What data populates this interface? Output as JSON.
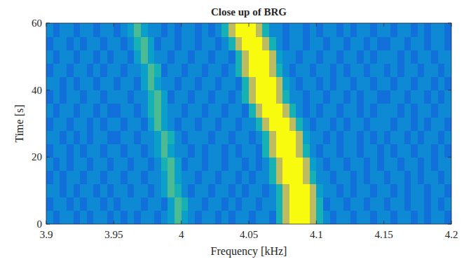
{
  "chart_data": {
    "type": "heatmap",
    "title": "Close up of BRG",
    "x_label": "Frequency [kHz]",
    "y_label": "Time [s]",
    "xlim": [
      3.9,
      4.2
    ],
    "xticks": [
      3.9,
      3.95,
      4,
      4.05,
      4.1,
      4.15,
      4.2
    ],
    "ylim": [
      0,
      60
    ],
    "yticks": [
      0,
      20,
      40,
      60
    ],
    "clim": [
      0,
      10
    ],
    "x": [
      3.9025,
      3.9075,
      3.9125,
      3.9175,
      3.9225,
      3.9275,
      3.9325,
      3.9375,
      3.9425,
      3.9475,
      3.9525,
      3.9575,
      3.9625,
      3.9675,
      3.9725,
      3.9775,
      3.9825,
      3.9875,
      3.9925,
      3.9975,
      4.0025,
      4.0075,
      4.0125,
      4.0175,
      4.0225,
      4.0275,
      4.0325,
      4.0375,
      4.0425,
      4.0475,
      4.0525,
      4.0575,
      4.0625,
      4.0675,
      4.0725,
      4.0775,
      4.0825,
      4.0875,
      4.0925,
      4.0975,
      4.1025,
      4.1075,
      4.1125,
      4.1175,
      4.1225,
      4.1275,
      4.1325,
      4.1375,
      4.1425,
      4.1475,
      4.1525,
      4.1575,
      4.1625,
      4.1675,
      4.1725,
      4.1775,
      4.1825,
      4.1875,
      4.1925,
      4.1975
    ],
    "y": [
      2,
      6,
      10,
      14,
      18,
      22,
      26,
      30,
      34,
      38,
      42,
      46,
      50,
      54,
      58
    ],
    "values": [
      [
        3,
        2,
        3,
        3,
        2,
        3,
        2,
        3,
        3,
        2,
        3,
        2,
        3,
        2,
        3,
        3,
        2,
        3,
        4,
        6,
        4,
        3,
        2,
        3,
        3,
        2,
        3,
        2,
        3,
        3,
        2,
        3,
        3,
        2,
        5,
        8,
        10,
        10,
        10,
        8,
        5,
        3,
        2,
        3,
        3,
        2,
        3,
        3,
        2,
        3,
        3,
        2,
        3,
        3,
        2,
        3,
        2,
        3,
        3,
        2
      ],
      [
        2,
        3,
        3,
        2,
        3,
        2,
        3,
        3,
        2,
        3,
        2,
        3,
        3,
        3,
        2,
        3,
        3,
        2,
        4,
        6,
        5,
        3,
        3,
        2,
        3,
        3,
        2,
        3,
        2,
        3,
        3,
        2,
        3,
        3,
        5,
        8,
        10,
        10,
        10,
        8,
        5,
        2,
        3,
        3,
        2,
        3,
        3,
        2,
        3,
        3,
        2,
        3,
        3,
        2,
        3,
        3,
        2,
        3,
        2,
        3
      ],
      [
        3,
        3,
        2,
        3,
        2,
        3,
        3,
        2,
        3,
        2,
        3,
        3,
        2,
        3,
        3,
        2,
        3,
        4,
        6,
        5,
        3,
        2,
        3,
        3,
        2,
        3,
        3,
        2,
        3,
        2,
        3,
        3,
        2,
        3,
        5,
        8,
        10,
        10,
        10,
        8,
        4,
        3,
        3,
        2,
        3,
        2,
        3,
        3,
        2,
        3,
        3,
        2,
        3,
        2,
        3,
        3,
        2,
        3,
        3,
        2
      ],
      [
        2,
        3,
        2,
        3,
        3,
        2,
        3,
        3,
        2,
        3,
        3,
        2,
        3,
        3,
        2,
        3,
        3,
        4,
        6,
        4,
        3,
        3,
        2,
        3,
        3,
        2,
        3,
        3,
        2,
        3,
        2,
        3,
        3,
        5,
        8,
        10,
        10,
        10,
        8,
        5,
        3,
        3,
        2,
        3,
        3,
        2,
        3,
        2,
        3,
        3,
        2,
        3,
        3,
        2,
        3,
        2,
        3,
        3,
        2,
        3
      ],
      [
        3,
        2,
        3,
        2,
        3,
        3,
        2,
        3,
        3,
        2,
        3,
        3,
        2,
        3,
        3,
        2,
        3,
        5,
        6,
        4,
        2,
        3,
        3,
        2,
        3,
        3,
        2,
        3,
        3,
        2,
        3,
        2,
        3,
        5,
        8,
        10,
        10,
        10,
        8,
        4,
        3,
        2,
        3,
        3,
        2,
        3,
        3,
        2,
        3,
        2,
        3,
        3,
        2,
        3,
        3,
        2,
        3,
        2,
        3,
        3
      ],
      [
        2,
        3,
        3,
        2,
        3,
        2,
        3,
        3,
        2,
        3,
        3,
        2,
        3,
        3,
        2,
        3,
        4,
        6,
        4,
        3,
        3,
        2,
        3,
        2,
        3,
        3,
        2,
        3,
        2,
        3,
        3,
        2,
        5,
        8,
        10,
        10,
        10,
        8,
        5,
        3,
        2,
        3,
        3,
        2,
        3,
        3,
        2,
        3,
        3,
        2,
        3,
        2,
        3,
        3,
        2,
        3,
        3,
        2,
        3,
        2
      ],
      [
        3,
        3,
        2,
        3,
        2,
        3,
        2,
        3,
        3,
        2,
        2,
        3,
        3,
        2,
        3,
        3,
        4,
        6,
        5,
        3,
        2,
        3,
        3,
        3,
        2,
        3,
        3,
        2,
        3,
        3,
        2,
        3,
        5,
        8,
        10,
        10,
        10,
        8,
        4,
        3,
        3,
        2,
        3,
        2,
        3,
        3,
        2,
        3,
        2,
        3,
        2,
        3,
        3,
        2,
        3,
        2,
        3,
        3,
        2,
        3
      ],
      [
        2,
        3,
        3,
        2,
        3,
        3,
        2,
        3,
        2,
        3,
        3,
        2,
        3,
        3,
        2,
        4,
        6,
        4,
        3,
        2,
        3,
        3,
        2,
        3,
        3,
        2,
        3,
        3,
        2,
        3,
        3,
        5,
        8,
        10,
        10,
        10,
        8,
        5,
        3,
        2,
        3,
        3,
        2,
        3,
        2,
        3,
        3,
        2,
        3,
        3,
        3,
        2,
        3,
        3,
        2,
        3,
        2,
        3,
        3,
        2
      ],
      [
        3,
        2,
        3,
        3,
        2,
        3,
        3,
        2,
        3,
        2,
        2,
        3,
        3,
        2,
        3,
        5,
        6,
        4,
        3,
        3,
        2,
        3,
        3,
        2,
        3,
        3,
        2,
        3,
        3,
        2,
        5,
        8,
        10,
        10,
        10,
        8,
        5,
        3,
        2,
        3,
        2,
        3,
        3,
        2,
        3,
        3,
        2,
        3,
        2,
        3,
        3,
        3,
        2,
        3,
        2,
        3,
        3,
        2,
        3,
        3
      ],
      [
        2,
        3,
        2,
        3,
        3,
        2,
        3,
        3,
        2,
        3,
        3,
        3,
        2,
        3,
        3,
        5,
        6,
        4,
        2,
        3,
        3,
        2,
        3,
        3,
        2,
        3,
        3,
        2,
        3,
        5,
        8,
        10,
        10,
        10,
        8,
        5,
        3,
        3,
        2,
        3,
        3,
        2,
        3,
        3,
        2,
        3,
        2,
        3,
        3,
        2,
        2,
        3,
        3,
        2,
        3,
        3,
        2,
        3,
        2,
        3
      ],
      [
        3,
        3,
        2,
        3,
        2,
        3,
        3,
        2,
        3,
        3,
        2,
        3,
        3,
        2,
        4,
        6,
        4,
        3,
        3,
        2,
        3,
        3,
        2,
        3,
        3,
        2,
        3,
        3,
        2,
        5,
        8,
        10,
        10,
        10,
        8,
        4,
        3,
        2,
        3,
        3,
        2,
        3,
        2,
        3,
        3,
        2,
        3,
        3,
        2,
        3,
        3,
        2,
        3,
        3,
        2,
        3,
        3,
        2,
        3,
        2
      ],
      [
        2,
        3,
        3,
        2,
        3,
        3,
        2,
        3,
        2,
        3,
        3,
        2,
        3,
        3,
        4,
        6,
        5,
        2,
        3,
        3,
        2,
        3,
        3,
        2,
        3,
        3,
        2,
        3,
        5,
        8,
        10,
        10,
        10,
        8,
        5,
        3,
        2,
        3,
        3,
        2,
        3,
        3,
        2,
        3,
        2,
        3,
        3,
        2,
        3,
        3,
        2,
        3,
        2,
        3,
        3,
        2,
        3,
        3,
        2,
        3
      ],
      [
        3,
        2,
        3,
        3,
        2,
        3,
        3,
        2,
        3,
        2,
        3,
        3,
        2,
        4,
        6,
        4,
        3,
        3,
        2,
        3,
        3,
        2,
        3,
        3,
        2,
        3,
        3,
        2,
        5,
        8,
        10,
        10,
        10,
        8,
        4,
        3,
        3,
        2,
        3,
        3,
        2,
        3,
        3,
        2,
        3,
        3,
        2,
        3,
        2,
        3,
        3,
        3,
        2,
        3,
        2,
        3,
        3,
        2,
        3,
        3
      ],
      [
        2,
        3,
        3,
        2,
        3,
        2,
        3,
        3,
        2,
        3,
        3,
        2,
        3,
        5,
        6,
        4,
        2,
        3,
        3,
        2,
        3,
        3,
        2,
        3,
        3,
        2,
        3,
        5,
        8,
        10,
        10,
        10,
        8,
        5,
        3,
        2,
        3,
        3,
        2,
        3,
        3,
        2,
        3,
        3,
        2,
        3,
        3,
        2,
        3,
        2,
        2,
        3,
        3,
        2,
        3,
        3,
        2,
        3,
        3,
        2
      ],
      [
        3,
        2,
        3,
        3,
        2,
        3,
        3,
        2,
        3,
        3,
        2,
        3,
        4,
        6,
        4,
        3,
        3,
        2,
        3,
        2,
        3,
        3,
        2,
        3,
        2,
        3,
        5,
        8,
        10,
        10,
        10,
        8,
        5,
        3,
        3,
        2,
        3,
        3,
        2,
        3,
        2,
        3,
        3,
        2,
        3,
        2,
        3,
        3,
        2,
        3,
        3,
        2,
        3,
        3,
        2,
        3,
        2,
        3,
        3,
        2
      ]
    ]
  }
}
